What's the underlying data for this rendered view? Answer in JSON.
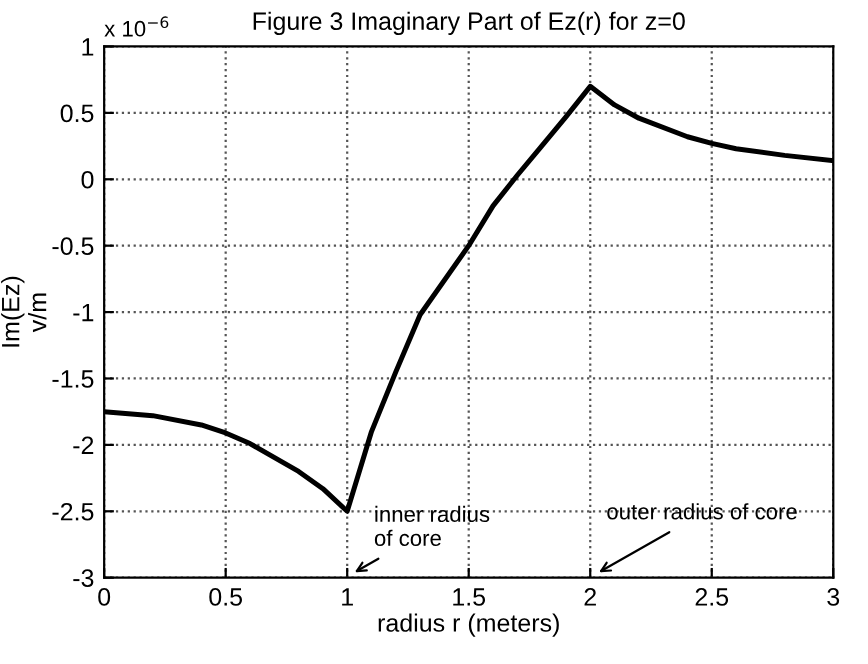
{
  "chart_data": {
    "type": "line",
    "title": "Figure 3 Imaginary Part of Ez(r) for z=0",
    "xlabel": "radius r (meters)",
    "ylabel": "Im(Ez)\nv/m",
    "x": [
      0,
      0.2,
      0.4,
      0.5,
      0.6,
      0.8,
      0.9,
      1,
      1.1,
      1.2,
      1.3,
      1.5,
      1.6,
      1.7,
      1.8,
      1.9,
      2,
      2.1,
      2.2,
      2.4,
      2.5,
      2.6,
      2.8,
      3
    ],
    "series": [
      {
        "color": "#000000",
        "values": [
          -1.75,
          -1.78,
          -1.85,
          -1.91,
          -1.99,
          -2.2,
          -2.33,
          -2.5,
          -1.9,
          -1.45,
          -1.02,
          -0.5,
          -0.2,
          0.03,
          0.25,
          0.47,
          0.7,
          0.56,
          0.46,
          0.32,
          0.27,
          0.23,
          0.18,
          0.14
        ]
      }
    ],
    "xlim": [
      0,
      3
    ],
    "xticks": [
      0,
      0.5,
      1,
      1.5,
      2,
      2.5,
      3
    ],
    "ylim": [
      -3,
      1
    ],
    "yticks": [
      -3,
      -2.5,
      -2,
      -1.5,
      -1,
      -0.5,
      0,
      0.5,
      1
    ],
    "grid": true,
    "line_style": "solid",
    "marker": "none",
    "annotations": [
      "x 10$^{−6}$",
      "inner radius\nof core",
      "outer radius of core"
    ]
  }
}
